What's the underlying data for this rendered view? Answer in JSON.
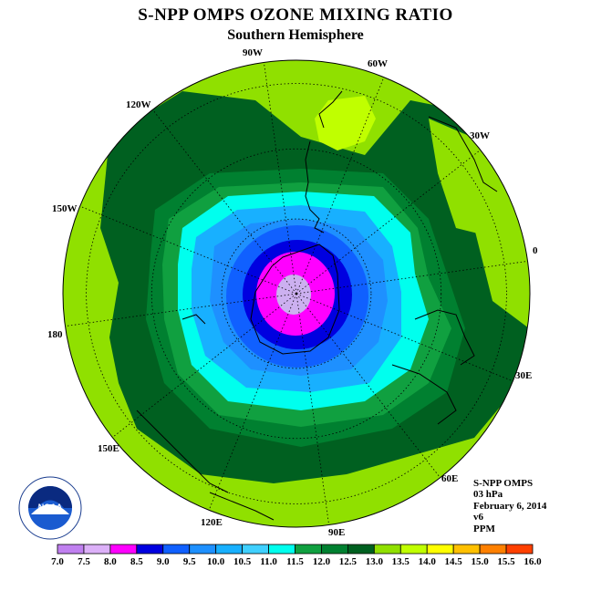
{
  "title": "S-NPP OMPS OZONE MIXING RATIO",
  "subtitle": "Southern Hemisphere",
  "longitude_labels": {
    "w90": "90W",
    "w60": "60W",
    "w30": "30W",
    "e0": "0",
    "e30": "30E",
    "e60": "60E",
    "e90": "90E",
    "e120": "120E",
    "e150": "150E",
    "e180": "180",
    "w150": "150W",
    "w120": "120W"
  },
  "info": {
    "instrument": "S-NPP OMPS",
    "level": "03 hPa",
    "date": "February 6, 2014",
    "version": "v6",
    "units": "PPM"
  },
  "logo": {
    "text": "NOAA"
  },
  "colorbar": {
    "ticks": [
      "7.0",
      "7.5",
      "8.0",
      "8.5",
      "9.0",
      "9.5",
      "10.0",
      "10.5",
      "11.0",
      "11.5",
      "12.0",
      "12.5",
      "13.0",
      "13.5",
      "14.0",
      "14.5",
      "15.0",
      "15.5",
      "16.0"
    ],
    "colors": [
      "#c080f0",
      "#dcb0f8",
      "#ff00ff",
      "#0000e0",
      "#1060ff",
      "#1e90ff",
      "#18b0ff",
      "#40d0ff",
      "#00ffee",
      "#10a040",
      "#008030",
      "#006020",
      "#90e000",
      "#c0ff00",
      "#ffff00",
      "#ffc000",
      "#ff8000",
      "#ff4000",
      "#ff0000",
      "#a05030"
    ]
  },
  "contour_colors": {
    "c8_0": "#ccb0f0",
    "c8_5": "#ff00ff",
    "c9_0": "#0000e0",
    "c9_5": "#1060ff",
    "c10_0": "#1e90ff",
    "c10_5": "#18b0ff",
    "c11_0": "#00ffee",
    "c11_5": "#10a040",
    "c12_0": "#008030",
    "c12_5": "#006020",
    "c13_0": "#90e000",
    "c13_5": "#c0ff00"
  }
}
